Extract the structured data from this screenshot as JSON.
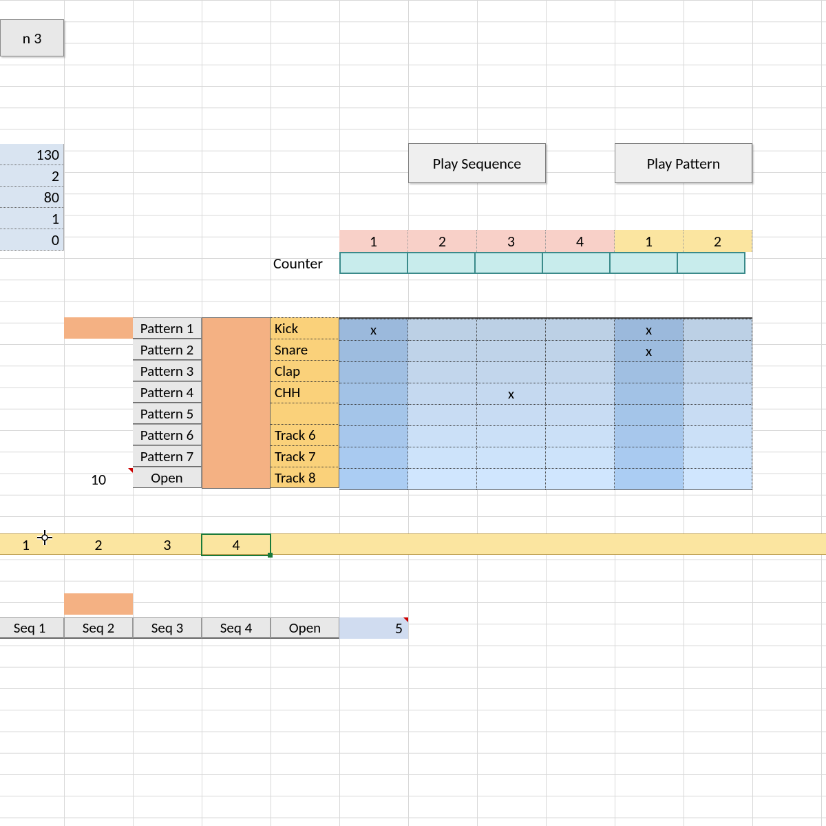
{
  "colors": {
    "grid_line": "#d8d8d8",
    "param_bg": "#d9e4f1",
    "btn_bg": "#efefef",
    "peach_orange": "#f4b183",
    "pink_hdr": "#f8d0c8",
    "cream_hdr": "#fbe5a0",
    "cyan_counter": "#c8ecec",
    "cyan_border": "#3a8a8a",
    "track_label_bg": "#fad17a",
    "step_fill_base": "#b8cde4",
    "step_fill_accent": "#8eb0d8",
    "seq_row_bg": "#fbe5a0",
    "selection_green": "#1a7a3a",
    "red_triangle": "#c00000",
    "seq5_bg": "#d0dcf0"
  },
  "top_tab": "n 3",
  "params": [
    130,
    2,
    80,
    1,
    0
  ],
  "buttons": {
    "play_sequence": "Play Sequence",
    "play_pattern": "Play Pattern"
  },
  "counter_label": "Counter",
  "step_headers": [
    1,
    2,
    3,
    4,
    1,
    2
  ],
  "pattern_buttons": [
    "Pattern 1",
    "Pattern 2",
    "Pattern 3",
    "Pattern 4",
    "Pattern 5",
    "Pattern 6",
    "Pattern 7",
    "Open"
  ],
  "ten_value": 10,
  "tracks": [
    "Kick",
    "Snare",
    "Clap",
    "CHH",
    "",
    "Track 6",
    "Track 7",
    "Track 8"
  ],
  "step_marks": {
    "Kick": [
      "x",
      "",
      "",
      "",
      "x",
      ""
    ],
    "Snare": [
      "",
      "",
      "",
      "",
      "x",
      ""
    ],
    "Clap": [
      "",
      "",
      "",
      "",
      "",
      ""
    ],
    "CHH": [
      "",
      "",
      "x",
      "",
      "",
      ""
    ],
    "": [
      "",
      "",
      "",
      "",
      "",
      ""
    ],
    "Track 6": [
      "",
      "",
      "",
      "",
      "",
      ""
    ],
    "Track 7": [
      "",
      "",
      "",
      "",
      "",
      ""
    ],
    "Track 8": [
      "",
      "",
      "",
      "",
      "",
      ""
    ]
  },
  "seq_row": [
    1,
    2,
    3,
    4
  ],
  "seq_selected_index": 3,
  "seq_buttons": [
    "Seq 1",
    "Seq 2",
    "Seq 3",
    "Seq 4",
    "Open"
  ],
  "seq_five": 5,
  "seq_orange_index": 1,
  "pattern_orange_index": 0
}
